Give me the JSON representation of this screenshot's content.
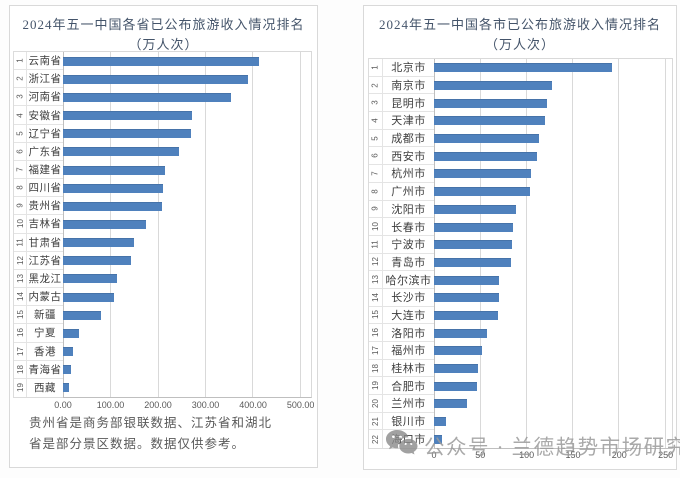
{
  "watermark": {
    "text": "公众号 · 兰德趋势市场研究",
    "color": "#9b9b9b"
  },
  "left_panel": {
    "note": "贵州省是商务部银联数据、江苏省和湖北省是部分景区数据。数据仅供参考。"
  },
  "chart_data": [
    {
      "type": "bar",
      "orientation": "horizontal-ranked",
      "title": "2024年五一中国各省已公布旅游收入情况排名（万人次）",
      "ranks": [
        1,
        2,
        3,
        4,
        5,
        6,
        7,
        8,
        9,
        10,
        11,
        12,
        13,
        14,
        15,
        16,
        17,
        18,
        19
      ],
      "categories": [
        "云南省",
        "浙江省",
        "河南省",
        "安徽省",
        "辽宁省",
        "广东省",
        "福建省",
        "四川省",
        "贵州省",
        "吉林省",
        "甘肃省",
        "江苏省",
        "黑龙江",
        "内蒙古",
        "新疆",
        "宁夏",
        "香港",
        "青海省",
        "西藏"
      ],
      "values": [
        415,
        390,
        355,
        273,
        271,
        246,
        215,
        212,
        210,
        175,
        151,
        143,
        114,
        108,
        81,
        33,
        21,
        16,
        12
      ],
      "xlim": [
        0,
        500
      ],
      "x_tick_values": [
        0,
        100,
        200,
        300,
        400,
        500
      ],
      "x_tick_labels": [
        "0.00",
        "100.00",
        "200.00",
        "300.00",
        "400.00",
        "500.00"
      ],
      "plot_domain_max": 524,
      "grid": true,
      "bar_color": "#4f81bd"
    },
    {
      "type": "bar",
      "orientation": "horizontal-ranked",
      "title": "2024年五一中国各市已公布旅游收入情况排名（万人次）",
      "ranks": [
        1,
        2,
        3,
        4,
        5,
        6,
        7,
        8,
        9,
        10,
        11,
        12,
        13,
        14,
        15,
        16,
        17,
        18,
        19,
        20,
        21,
        22
      ],
      "categories": [
        "北京市",
        "南京市",
        "昆明市",
        "天津市",
        "成都市",
        "西安市",
        "杭州市",
        "广州市",
        "沈阳市",
        "长春市",
        "宁波市",
        "青岛市",
        "哈尔滨市",
        "长沙市",
        "大连市",
        "洛阳市",
        "福州市",
        "桂林市",
        "合肥市",
        "兰州市",
        "银川市",
        "海口市"
      ],
      "values": [
        193,
        128,
        122,
        120,
        114,
        112,
        105,
        104,
        89,
        86,
        85,
        83,
        71,
        70,
        69,
        57,
        52,
        48,
        47,
        36,
        13,
        9
      ],
      "xlim": [
        0,
        250
      ],
      "x_tick_values": [
        0,
        50,
        100,
        150,
        200,
        250
      ],
      "x_tick_labels": [
        "0",
        "50",
        "100",
        "150",
        "200",
        "250"
      ],
      "plot_domain_max": 258,
      "grid": true,
      "bar_color": "#4f81bd"
    }
  ]
}
